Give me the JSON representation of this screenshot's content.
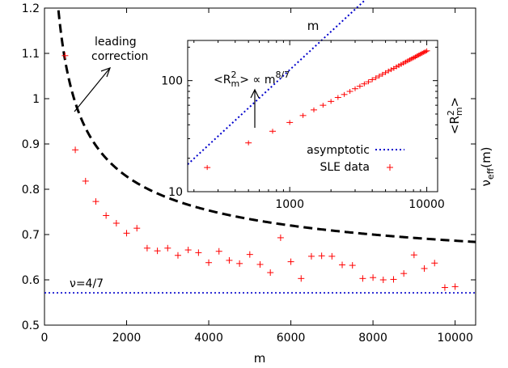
{
  "chart_data": [
    {
      "type": "scatter",
      "xlabel": "m",
      "ylabel": "ν_eff(m)",
      "xlim": [
        0,
        10500
      ],
      "ylim": [
        0.5,
        1.2
      ],
      "x_ticks": [
        0,
        2000,
        4000,
        6000,
        8000,
        10000
      ],
      "x_tick_labels": [
        "0",
        "2000",
        "4000",
        "6000",
        "8000",
        "10000"
      ],
      "y_ticks": [
        0.5,
        0.6,
        0.7,
        0.8,
        0.9,
        1.0,
        1.1,
        1.2
      ],
      "y_tick_labels": [
        "0.5",
        "0.6",
        "0.7",
        "0.8",
        "0.9",
        "1",
        "1.1",
        "1.2"
      ],
      "series": [
        {
          "kind": "points",
          "color": "#ff0000",
          "x": [
            500,
            750,
            1000,
            1250,
            1500,
            1750,
            2000,
            2250,
            2500,
            2750,
            3000,
            3250,
            3500,
            3750,
            4000,
            4250,
            4500,
            4750,
            5000,
            5250,
            5500,
            5750,
            6000,
            6250,
            6500,
            6750,
            7000,
            7250,
            7500,
            7750,
            8000,
            8250,
            8500,
            8750,
            9000,
            9250,
            9500,
            9750,
            10000
          ],
          "y": [
            1.095,
            0.887,
            0.818,
            0.773,
            0.742,
            0.725,
            0.703,
            0.714,
            0.67,
            0.664,
            0.67,
            0.654,
            0.666,
            0.66,
            0.638,
            0.663,
            0.643,
            0.636,
            0.656,
            0.634,
            0.616,
            0.693,
            0.64,
            0.603,
            0.652,
            0.653,
            0.652,
            0.633,
            0.632,
            0.603,
            0.605,
            0.6,
            0.601,
            0.614,
            0.655,
            0.625,
            0.637,
            0.583,
            0.585
          ]
        },
        {
          "kind": "line",
          "dash": "long-dash",
          "color": "#000000",
          "function": "nu_inf + A / sqrt(m)",
          "nu_inf": 0.5714,
          "A": 11.5
        },
        {
          "kind": "hline",
          "dash": "dotted",
          "color": "#0000cc",
          "y": 0.5714
        }
      ],
      "annotations": [
        {
          "text_lines": [
            "leading",
            "correction"
          ],
          "arrow": "up-right"
        },
        {
          "text": "ν=4/7"
        }
      ]
    },
    {
      "type": "scatter",
      "inset": true,
      "xlabel": "m",
      "ylabel": "<R_m^2>",
      "scale": "log-log",
      "xlim": [
        180,
        12000
      ],
      "ylim": [
        10,
        230
      ],
      "x_ticks": [
        1000,
        10000
      ],
      "x_tick_labels": [
        "1000",
        "10000"
      ],
      "y_ticks": [
        10,
        100
      ],
      "y_tick_labels": [
        "10",
        "100"
      ],
      "legend": {
        "placement": "bottom-right",
        "entries": [
          {
            "label": "asymptotic",
            "style": "dotted",
            "color": "#0000cc"
          },
          {
            "label": "SLE data",
            "style": "plus",
            "color": "#ff0000"
          }
        ]
      },
      "series": [
        {
          "kind": "points",
          "color": "#ff0000",
          "x": [
            250,
            500,
            750,
            1000,
            1250,
            1500,
            1750,
            2000,
            2250,
            2500,
            2750,
            3000,
            3250,
            3500,
            3750,
            4000,
            4250,
            4500,
            4750,
            5000,
            5250,
            5500,
            5750,
            6000,
            6250,
            6500,
            6750,
            7000,
            7250,
            7500,
            7750,
            8000,
            8250,
            8500,
            8750,
            9000,
            9250,
            9500,
            9750,
            10000
          ],
          "y": [
            16.5,
            27.5,
            35.0,
            42.0,
            48.5,
            54.5,
            60.0,
            65.0,
            70.5,
            75.0,
            80.0,
            84.5,
            89.0,
            93.5,
            97.5,
            102.0,
            106.0,
            110.0,
            114.0,
            118.0,
            122.0,
            125.5,
            129.0,
            133.0,
            136.5,
            140.0,
            143.5,
            147.0,
            150.5,
            154.0,
            157.0,
            160.5,
            163.5,
            167.0,
            170.0,
            173.5,
            176.5,
            179.5,
            182.5,
            185.5
          ]
        },
        {
          "kind": "line",
          "dash": "dotted",
          "color": "#0000cc",
          "function": "C * m^(8/7)",
          "C": 0.0466
        }
      ],
      "annotations": [
        {
          "text": "<R_m^2> ∝ m^(8/7)",
          "arrow": "up"
        }
      ]
    }
  ],
  "text": {
    "main_xlabel": "m",
    "main_ylabel_base": "ν",
    "main_ylabel_sub": "eff",
    "main_ylabel_tail": "(m)",
    "leading_line1": "leading",
    "leading_line2": "correction",
    "nu_label": "ν=4/7",
    "inset_xlabel": "m",
    "inset_ylabel_open": "<R",
    "inset_ylabel_sup": "2",
    "inset_ylabel_sub": "m",
    "inset_ylabel_close": ">",
    "scaling_open": "<R",
    "scaling_sup": "2",
    "scaling_sub": "m",
    "scaling_mid": "> ∝ m",
    "scaling_exp": "8/7",
    "legend_asymptotic": "asymptotic",
    "legend_sle": "SLE data"
  }
}
